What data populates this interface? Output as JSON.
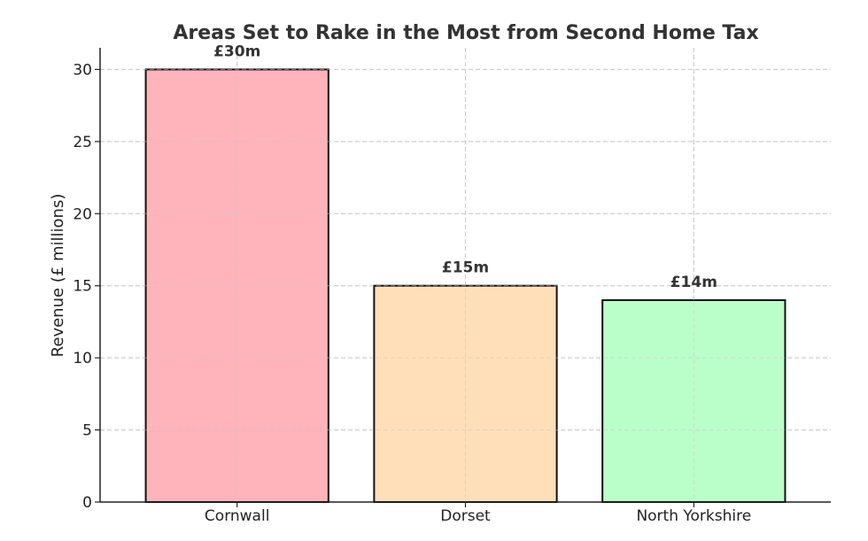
{
  "chart_data": {
    "type": "bar",
    "title": "Areas Set to Rake in the Most from Second Home Tax",
    "xlabel": "",
    "ylabel": "Revenue (£ millions)",
    "categories": [
      "Cornwall",
      "Dorset",
      "North Yorkshire"
    ],
    "values": [
      30,
      15,
      14
    ],
    "data_labels": [
      "£30m",
      "£15m",
      "£14m"
    ],
    "colors": [
      "#ffb3ba",
      "#ffdfba",
      "#baffc9"
    ],
    "ylim": [
      0,
      31.5
    ],
    "yticks": [
      0,
      5,
      10,
      15,
      20,
      25,
      30
    ],
    "grid": true,
    "legend": "none"
  }
}
